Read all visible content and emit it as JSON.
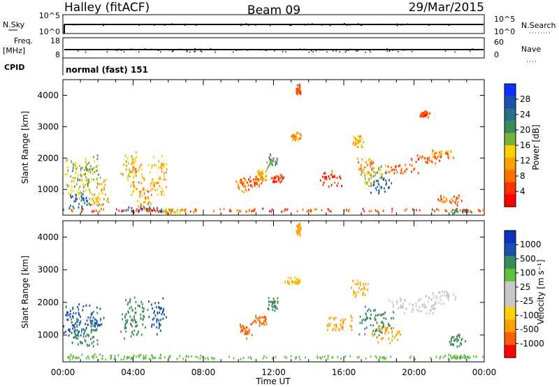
{
  "header": {
    "left_title": "Halley (fitACF)",
    "center_title": "Beam 09",
    "right_title": "29/Mar/2015"
  },
  "status_panels": {
    "nsky_label": "N.Sky",
    "nsky_ticks": [
      "10^5",
      "10^0"
    ],
    "nsearch_label": "N.Search",
    "nsearch_ticks": [
      "10^5",
      "10^0"
    ],
    "freq_label_1": "Freq.",
    "freq_label_2": "[MHz]",
    "freq_ticks": [
      "18",
      "8"
    ],
    "nave_label": "Nave",
    "nave_ticks": [
      "60",
      "0"
    ],
    "cpid_label": "CPID",
    "cpid_value": "normal (fast) 151"
  },
  "chart_data": [
    {
      "type": "heatmap",
      "title": "",
      "xlabel": "",
      "ylabel": "Slant Range [km]",
      "x_ticks": [
        "00:00",
        "04:00",
        "08:00",
        "12:00",
        "16:00",
        "20:00",
        "00:00"
      ],
      "y_ticks": [
        1000,
        2000,
        3000,
        4000
      ],
      "ylim": [
        180,
        4500
      ],
      "colorbar_label": "Power [dB]",
      "colorbar_ticks": [
        "4",
        "8",
        "12",
        "16",
        "20",
        "24",
        "28"
      ],
      "colorbar_colors": [
        "#1030ff",
        "#1a50b4",
        "#2a6e8a",
        "#3a8a5a",
        "#7ab040",
        "#ffd000",
        "#ffa000",
        "#ff7000",
        "#ff3000",
        "#ff0000"
      ],
      "blobs": [
        {
          "x": 0.7,
          "y": 1300,
          "w": 0.9,
          "h": 700,
          "v": 16
        },
        {
          "x": 1.0,
          "y": 600,
          "w": 0.8,
          "h": 350,
          "v": 26
        },
        {
          "x": 1.6,
          "y": 1500,
          "w": 0.6,
          "h": 600,
          "v": 18
        },
        {
          "x": 2.0,
          "y": 900,
          "w": 0.8,
          "h": 500,
          "v": 14
        },
        {
          "x": 3.8,
          "y": 1700,
          "w": 0.6,
          "h": 500,
          "v": 14
        },
        {
          "x": 4.2,
          "y": 1300,
          "w": 0.5,
          "h": 600,
          "v": 12
        },
        {
          "x": 4.6,
          "y": 700,
          "w": 0.5,
          "h": 400,
          "v": 10
        },
        {
          "x": 4.6,
          "y": 320,
          "w": 1.4,
          "h": 120,
          "v": 26
        },
        {
          "x": 5.4,
          "y": 1400,
          "w": 0.6,
          "h": 700,
          "v": 12
        },
        {
          "x": 6.3,
          "y": 280,
          "w": 0.9,
          "h": 80,
          "v": 14
        },
        {
          "x": 10.2,
          "y": 1100,
          "w": 0.4,
          "h": 250,
          "v": 8
        },
        {
          "x": 10.9,
          "y": 1200,
          "w": 0.5,
          "h": 200,
          "v": 6
        },
        {
          "x": 11.3,
          "y": 1400,
          "w": 0.4,
          "h": 200,
          "v": 12
        },
        {
          "x": 11.9,
          "y": 1850,
          "w": 0.35,
          "h": 300,
          "v": 20
        },
        {
          "x": 13.4,
          "y": 4150,
          "w": 0.15,
          "h": 200,
          "v": 6
        },
        {
          "x": 13.2,
          "y": 2650,
          "w": 0.4,
          "h": 150,
          "v": 10
        },
        {
          "x": 12.2,
          "y": 1300,
          "w": 0.4,
          "h": 150,
          "v": 4
        },
        {
          "x": 15.2,
          "y": 1300,
          "w": 0.8,
          "h": 300,
          "v": 4
        },
        {
          "x": 16.8,
          "y": 2500,
          "w": 0.4,
          "h": 250,
          "v": 12
        },
        {
          "x": 17.3,
          "y": 1700,
          "w": 0.7,
          "h": 300,
          "v": 10
        },
        {
          "x": 17.7,
          "y": 1400,
          "w": 0.9,
          "h": 400,
          "v": 16
        },
        {
          "x": 18.1,
          "y": 1150,
          "w": 0.7,
          "h": 350,
          "v": 26
        },
        {
          "x": 19.3,
          "y": 1600,
          "w": 1.0,
          "h": 200,
          "v": 8
        },
        {
          "x": 20.7,
          "y": 1900,
          "w": 1.0,
          "h": 200,
          "v": 6
        },
        {
          "x": 21.6,
          "y": 2100,
          "w": 0.7,
          "h": 150,
          "v": 10
        },
        {
          "x": 20.6,
          "y": 3350,
          "w": 0.3,
          "h": 150,
          "v": 6
        },
        {
          "x": 22.0,
          "y": 650,
          "w": 1.0,
          "h": 200,
          "v": 8
        },
        {
          "x": 22.6,
          "y": 270,
          "w": 0.8,
          "h": 80,
          "v": 22
        },
        {
          "x": 12.0,
          "y": 300,
          "w": 24,
          "h": 60,
          "v": 6
        }
      ]
    },
    {
      "type": "heatmap",
      "title": "",
      "xlabel": "Time UT",
      "ylabel": "Slant Range [km]",
      "x_ticks": [
        "00:00",
        "04:00",
        "08:00",
        "12:00",
        "16:00",
        "20:00",
        "00:00"
      ],
      "y_ticks": [
        1000,
        2000,
        3000,
        4000
      ],
      "ylim": [
        180,
        4500
      ],
      "colorbar_label": "Velocity [m s⁻¹]",
      "colorbar_ticks": [
        "1000",
        "500",
        "100",
        "25",
        "-25",
        "-100",
        "-500",
        "-1000"
      ],
      "colorbar_colors": [
        "#1030c0",
        "#1a50b4",
        "#3a8a5a",
        "#60c040",
        "#c8c8c8",
        "#c8c8c8",
        "#ffd000",
        "#ffa000",
        "#ff6000",
        "#ff0000"
      ],
      "blobs": [
        {
          "x": 0.6,
          "y": 1400,
          "w": 0.9,
          "h": 600,
          "v": 800
        },
        {
          "x": 1.3,
          "y": 1000,
          "w": 1.0,
          "h": 500,
          "v": 150
        },
        {
          "x": 1.8,
          "y": 1500,
          "w": 0.6,
          "h": 500,
          "v": 600
        },
        {
          "x": 4.0,
          "y": 1500,
          "w": 0.9,
          "h": 700,
          "v": 300
        },
        {
          "x": 5.4,
          "y": 1500,
          "w": 0.6,
          "h": 600,
          "v": 700
        },
        {
          "x": 3.0,
          "y": 300,
          "w": 4.0,
          "h": 100,
          "v": 40
        },
        {
          "x": 10.4,
          "y": 1100,
          "w": 0.4,
          "h": 250,
          "v": -800
        },
        {
          "x": 11.2,
          "y": 1400,
          "w": 0.5,
          "h": 200,
          "v": -700
        },
        {
          "x": 11.9,
          "y": 1900,
          "w": 0.4,
          "h": 300,
          "v": 400
        },
        {
          "x": 13.4,
          "y": 4200,
          "w": 0.15,
          "h": 200,
          "v": -150
        },
        {
          "x": 13.1,
          "y": 2650,
          "w": 0.5,
          "h": 150,
          "v": -120
        },
        {
          "x": 15.6,
          "y": 1300,
          "w": 1.0,
          "h": 300,
          "v": -200
        },
        {
          "x": 16.9,
          "y": 2400,
          "w": 0.5,
          "h": 300,
          "v": -120
        },
        {
          "x": 17.8,
          "y": 1400,
          "w": 1.1,
          "h": 500,
          "v": 150
        },
        {
          "x": 18.5,
          "y": 1000,
          "w": 1.0,
          "h": 300,
          "v": -150
        },
        {
          "x": 20.0,
          "y": 1900,
          "w": 1.8,
          "h": 300,
          "v": 0
        },
        {
          "x": 21.5,
          "y": 2150,
          "w": 1.0,
          "h": 200,
          "v": 0
        },
        {
          "x": 22.5,
          "y": 800,
          "w": 0.6,
          "h": 250,
          "v": 300
        },
        {
          "x": 22.4,
          "y": 300,
          "w": 1.0,
          "h": 80,
          "v": 80
        },
        {
          "x": 12.0,
          "y": 280,
          "w": 24,
          "h": 60,
          "v": 60
        }
      ]
    }
  ]
}
